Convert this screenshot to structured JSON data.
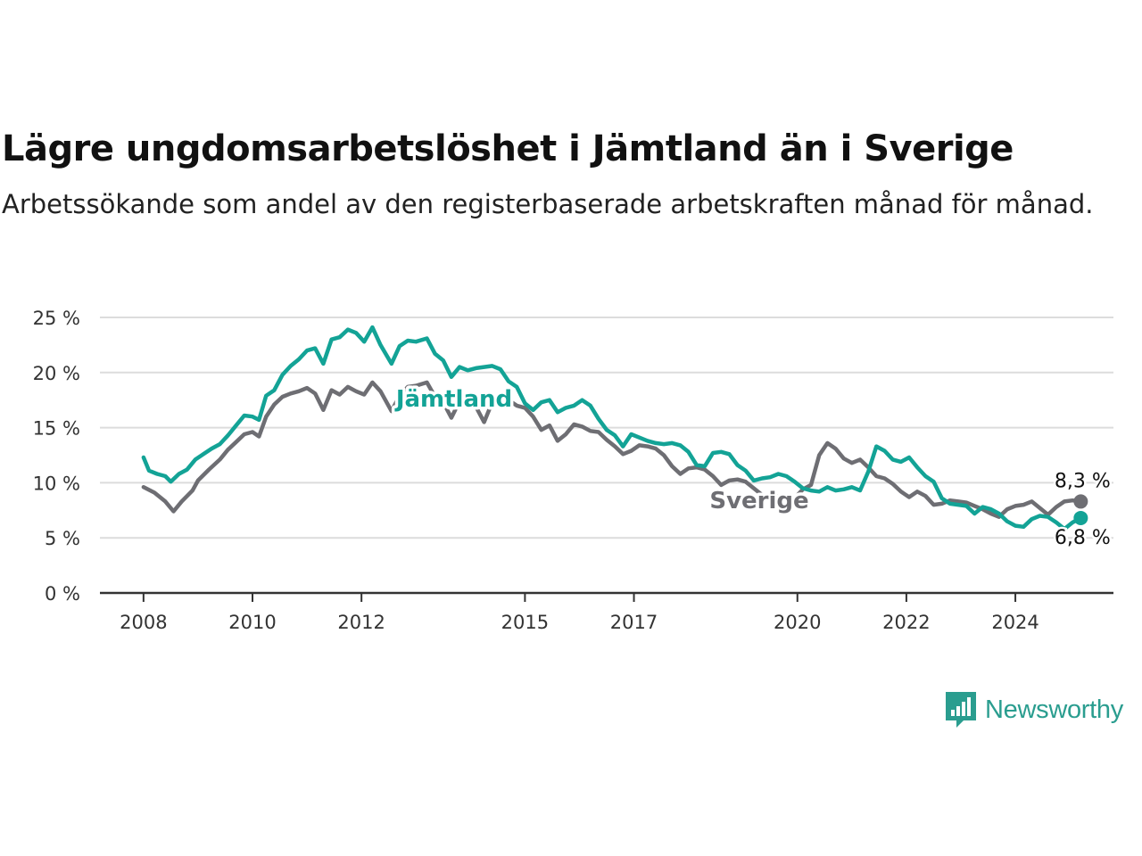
{
  "chart_data": {
    "type": "line",
    "title": "Lägre ungdomsarbetslöshet i Jämtland än i Sverige",
    "subtitle": "Arbetssökande som andel av den registerbaserade arbetskraften månad för månad.",
    "y_ticks": [
      "0 %",
      "5 %",
      "10 %",
      "15 %",
      "20 %",
      "25 %"
    ],
    "x_ticks": [
      "2008",
      "2010",
      "2012",
      "2015",
      "2017",
      "2020",
      "2022",
      "2024"
    ],
    "ylim": [
      0,
      25
    ],
    "xlim": [
      2007.2,
      2025.8
    ],
    "grid": true,
    "series": [
      {
        "name": "Sverige",
        "color": "#6e6e73",
        "end_label": "8,3 %",
        "points": [
          [
            2008.0,
            9.6
          ],
          [
            2008.2,
            9.1
          ],
          [
            2008.4,
            8.3
          ],
          [
            2008.55,
            7.4
          ],
          [
            2008.7,
            8.3
          ],
          [
            2008.9,
            9.3
          ],
          [
            2009.0,
            10.2
          ],
          [
            2009.2,
            11.2
          ],
          [
            2009.4,
            12.1
          ],
          [
            2009.55,
            13.0
          ],
          [
            2009.7,
            13.7
          ],
          [
            2009.85,
            14.4
          ],
          [
            2010.0,
            14.6
          ],
          [
            2010.12,
            14.2
          ],
          [
            2010.25,
            16.0
          ],
          [
            2010.4,
            17.1
          ],
          [
            2010.55,
            17.8
          ],
          [
            2010.7,
            18.1
          ],
          [
            2010.85,
            18.3
          ],
          [
            2011.0,
            18.6
          ],
          [
            2011.15,
            18.1
          ],
          [
            2011.3,
            16.6
          ],
          [
            2011.45,
            18.4
          ],
          [
            2011.6,
            18.0
          ],
          [
            2011.75,
            18.7
          ],
          [
            2011.9,
            18.3
          ],
          [
            2012.05,
            18.0
          ],
          [
            2012.2,
            19.1
          ],
          [
            2012.35,
            18.3
          ],
          [
            2012.55,
            16.5
          ],
          [
            2012.7,
            17.9
          ],
          [
            2012.85,
            18.7
          ],
          [
            2013.0,
            18.8
          ],
          [
            2013.2,
            19.1
          ],
          [
            2013.35,
            17.8
          ],
          [
            2013.5,
            17.3
          ],
          [
            2013.65,
            15.9
          ],
          [
            2013.8,
            17.4
          ],
          [
            2013.95,
            17.8
          ],
          [
            2014.1,
            16.9
          ],
          [
            2014.25,
            15.5
          ],
          [
            2014.4,
            17.3
          ],
          [
            2014.55,
            17.2
          ],
          [
            2014.7,
            17.5
          ],
          [
            2014.85,
            17.0
          ],
          [
            2015.0,
            16.8
          ],
          [
            2015.15,
            16.0
          ],
          [
            2015.3,
            14.8
          ],
          [
            2015.45,
            15.2
          ],
          [
            2015.6,
            13.8
          ],
          [
            2015.75,
            14.4
          ],
          [
            2015.9,
            15.3
          ],
          [
            2016.05,
            15.1
          ],
          [
            2016.2,
            14.7
          ],
          [
            2016.35,
            14.6
          ],
          [
            2016.5,
            13.9
          ],
          [
            2016.65,
            13.3
          ],
          [
            2016.8,
            12.6
          ],
          [
            2016.95,
            12.9
          ],
          [
            2017.1,
            13.4
          ],
          [
            2017.25,
            13.3
          ],
          [
            2017.4,
            13.1
          ],
          [
            2017.55,
            12.5
          ],
          [
            2017.7,
            11.5
          ],
          [
            2017.85,
            10.8
          ],
          [
            2018.0,
            11.3
          ],
          [
            2018.15,
            11.4
          ],
          [
            2018.3,
            11.2
          ],
          [
            2018.45,
            10.6
          ],
          [
            2018.6,
            9.8
          ],
          [
            2018.75,
            10.2
          ],
          [
            2018.9,
            10.3
          ],
          [
            2019.05,
            10.1
          ],
          [
            2019.2,
            9.5
          ],
          [
            2019.35,
            8.9
          ],
          [
            2019.5,
            8.6
          ],
          [
            2019.65,
            8.8
          ],
          [
            2019.8,
            8.7
          ],
          [
            2019.95,
            8.6
          ],
          [
            2020.1,
            9.4
          ],
          [
            2020.25,
            9.8
          ],
          [
            2020.4,
            12.5
          ],
          [
            2020.55,
            13.6
          ],
          [
            2020.7,
            13.1
          ],
          [
            2020.85,
            12.2
          ],
          [
            2021.0,
            11.8
          ],
          [
            2021.15,
            12.1
          ],
          [
            2021.3,
            11.4
          ],
          [
            2021.45,
            10.6
          ],
          [
            2021.6,
            10.4
          ],
          [
            2021.75,
            9.9
          ],
          [
            2021.9,
            9.2
          ],
          [
            2022.05,
            8.7
          ],
          [
            2022.2,
            9.2
          ],
          [
            2022.35,
            8.8
          ],
          [
            2022.5,
            8.0
          ],
          [
            2022.65,
            8.1
          ],
          [
            2022.8,
            8.4
          ],
          [
            2022.95,
            8.3
          ],
          [
            2023.1,
            8.2
          ],
          [
            2023.25,
            7.9
          ],
          [
            2023.4,
            7.6
          ],
          [
            2023.55,
            7.2
          ],
          [
            2023.7,
            6.9
          ],
          [
            2023.85,
            7.6
          ],
          [
            2024.0,
            7.9
          ],
          [
            2024.15,
            8.0
          ],
          [
            2024.3,
            8.3
          ],
          [
            2024.45,
            7.7
          ],
          [
            2024.6,
            7.1
          ],
          [
            2024.75,
            7.8
          ],
          [
            2024.9,
            8.3
          ],
          [
            2025.05,
            8.4
          ],
          [
            2025.2,
            8.3
          ]
        ]
      },
      {
        "name": "Jämtland",
        "color": "#13a396",
        "end_label": "6,8 %",
        "points": [
          [
            2008.0,
            12.3
          ],
          [
            2008.1,
            11.1
          ],
          [
            2008.25,
            10.8
          ],
          [
            2008.4,
            10.6
          ],
          [
            2008.5,
            10.1
          ],
          [
            2008.65,
            10.8
          ],
          [
            2008.8,
            11.2
          ],
          [
            2008.95,
            12.1
          ],
          [
            2009.1,
            12.6
          ],
          [
            2009.25,
            13.1
          ],
          [
            2009.4,
            13.5
          ],
          [
            2009.55,
            14.3
          ],
          [
            2009.7,
            15.2
          ],
          [
            2009.85,
            16.1
          ],
          [
            2010.0,
            16.0
          ],
          [
            2010.12,
            15.7
          ],
          [
            2010.25,
            17.9
          ],
          [
            2010.4,
            18.4
          ],
          [
            2010.55,
            19.8
          ],
          [
            2010.7,
            20.6
          ],
          [
            2010.85,
            21.2
          ],
          [
            2011.0,
            22.0
          ],
          [
            2011.15,
            22.2
          ],
          [
            2011.3,
            20.8
          ],
          [
            2011.45,
            23.0
          ],
          [
            2011.6,
            23.2
          ],
          [
            2011.75,
            23.9
          ],
          [
            2011.9,
            23.6
          ],
          [
            2012.05,
            22.8
          ],
          [
            2012.2,
            24.1
          ],
          [
            2012.35,
            22.5
          ],
          [
            2012.55,
            20.8
          ],
          [
            2012.7,
            22.4
          ],
          [
            2012.85,
            22.9
          ],
          [
            2013.0,
            22.8
          ],
          [
            2013.2,
            23.1
          ],
          [
            2013.35,
            21.7
          ],
          [
            2013.5,
            21.1
          ],
          [
            2013.65,
            19.6
          ],
          [
            2013.8,
            20.5
          ],
          [
            2013.95,
            20.2
          ],
          [
            2014.1,
            20.4
          ],
          [
            2014.25,
            20.5
          ],
          [
            2014.4,
            20.6
          ],
          [
            2014.55,
            20.3
          ],
          [
            2014.7,
            19.2
          ],
          [
            2014.85,
            18.7
          ],
          [
            2015.0,
            17.2
          ],
          [
            2015.15,
            16.6
          ],
          [
            2015.3,
            17.3
          ],
          [
            2015.45,
            17.5
          ],
          [
            2015.6,
            16.4
          ],
          [
            2015.75,
            16.8
          ],
          [
            2015.9,
            17.0
          ],
          [
            2016.05,
            17.5
          ],
          [
            2016.2,
            17.0
          ],
          [
            2016.35,
            15.8
          ],
          [
            2016.5,
            14.8
          ],
          [
            2016.65,
            14.3
          ],
          [
            2016.8,
            13.3
          ],
          [
            2016.95,
            14.4
          ],
          [
            2017.1,
            14.1
          ],
          [
            2017.25,
            13.8
          ],
          [
            2017.4,
            13.6
          ],
          [
            2017.55,
            13.5
          ],
          [
            2017.7,
            13.6
          ],
          [
            2017.85,
            13.4
          ],
          [
            2018.0,
            12.8
          ],
          [
            2018.15,
            11.6
          ],
          [
            2018.3,
            11.5
          ],
          [
            2018.45,
            12.7
          ],
          [
            2018.6,
            12.8
          ],
          [
            2018.75,
            12.6
          ],
          [
            2018.9,
            11.6
          ],
          [
            2019.05,
            11.1
          ],
          [
            2019.2,
            10.2
          ],
          [
            2019.35,
            10.4
          ],
          [
            2019.5,
            10.5
          ],
          [
            2019.65,
            10.8
          ],
          [
            2019.8,
            10.6
          ],
          [
            2019.95,
            10.1
          ],
          [
            2020.1,
            9.5
          ],
          [
            2020.25,
            9.3
          ],
          [
            2020.4,
            9.2
          ],
          [
            2020.55,
            9.6
          ],
          [
            2020.7,
            9.3
          ],
          [
            2020.85,
            9.4
          ],
          [
            2021.0,
            9.6
          ],
          [
            2021.15,
            9.3
          ],
          [
            2021.3,
            11.0
          ],
          [
            2021.45,
            13.3
          ],
          [
            2021.6,
            12.9
          ],
          [
            2021.75,
            12.1
          ],
          [
            2021.9,
            11.9
          ],
          [
            2022.05,
            12.3
          ],
          [
            2022.2,
            11.4
          ],
          [
            2022.35,
            10.6
          ],
          [
            2022.5,
            10.1
          ],
          [
            2022.65,
            8.6
          ],
          [
            2022.8,
            8.1
          ],
          [
            2022.95,
            8.0
          ],
          [
            2023.1,
            7.9
          ],
          [
            2023.25,
            7.2
          ],
          [
            2023.4,
            7.8
          ],
          [
            2023.55,
            7.6
          ],
          [
            2023.7,
            7.2
          ],
          [
            2023.85,
            6.5
          ],
          [
            2024.0,
            6.1
          ],
          [
            2024.15,
            6.0
          ],
          [
            2024.3,
            6.7
          ],
          [
            2024.45,
            7.0
          ],
          [
            2024.6,
            6.9
          ],
          [
            2024.75,
            6.4
          ],
          [
            2024.9,
            5.8
          ],
          [
            2025.05,
            6.4
          ],
          [
            2025.2,
            6.8
          ]
        ]
      }
    ]
  },
  "brand": {
    "name": "Newsworthy",
    "icon": "newsworthy-logo-icon",
    "color": "#2a9d8f"
  }
}
